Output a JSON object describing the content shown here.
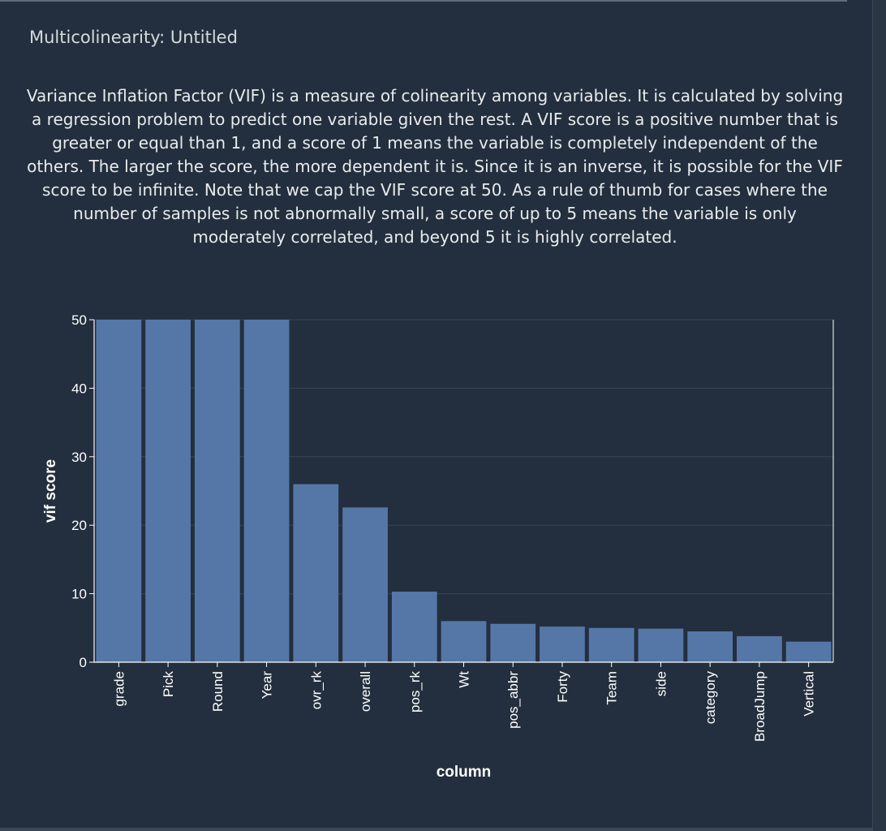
{
  "panel": {
    "title": "Multicolinearity: Untitled",
    "description": "Variance Inflation Factor (VIF) is a measure of colinearity among variables. It is calculated by solving a regression problem to predict one variable given the rest. A VIF score is a positive number that is greater or equal than 1, and a score of 1 means the variable is completely independent of the others. The larger the score, the more dependent it is. Since it is an inverse, it is possible for the VIF score to be infinite. Note that we cap the VIF score at 50. As a rule of thumb for cases where the number of samples is not abnormally small, a score of up to 5 means the variable is only moderately correlated, and beyond 5 it is highly correlated."
  },
  "colors": {
    "background": "#232f3e",
    "bar": "#5577a8",
    "grid": "#3a4552",
    "axis": "#ffffff",
    "text": "#e9ebed"
  },
  "chart_data": {
    "type": "bar",
    "xlabel": "column",
    "ylabel": "vif score",
    "ylim": [
      0,
      50
    ],
    "yticks": [
      0,
      10,
      20,
      30,
      40,
      50
    ],
    "grid": true,
    "categories": [
      "grade",
      "Pick",
      "Round",
      "Year",
      "ovr_rk",
      "overall",
      "pos_rk",
      "Wt",
      "pos_abbr",
      "Forty",
      "Team",
      "side",
      "category",
      "BroadJump",
      "Vertical"
    ],
    "values": [
      50,
      50,
      50,
      50,
      26,
      22.6,
      10.3,
      6,
      5.6,
      5.2,
      5,
      4.9,
      4.5,
      3.8,
      3
    ]
  }
}
